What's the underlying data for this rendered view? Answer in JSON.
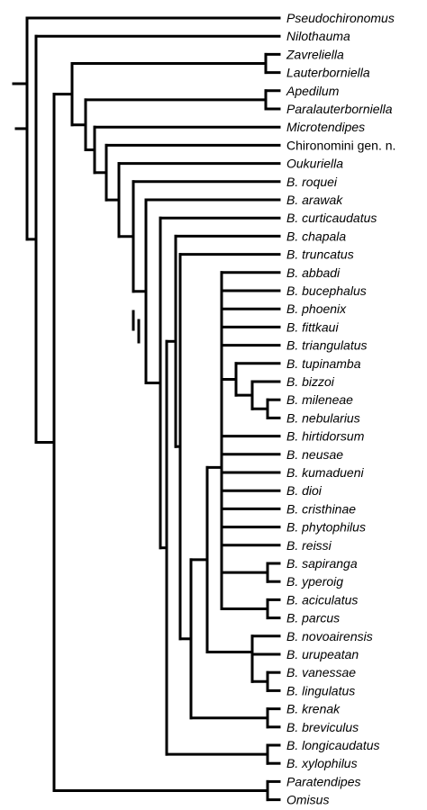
{
  "taxa": [
    {
      "label": "Pseudochironomus",
      "italic": true
    },
    {
      "label": "Nilothauma",
      "italic": true
    },
    {
      "label": "Zavreliella",
      "italic": true
    },
    {
      "label": "Lauterborniella",
      "italic": true
    },
    {
      "label": "Apedilum",
      "italic": true
    },
    {
      "label": "Paralauterborniella",
      "italic": true
    },
    {
      "label": "Microtendipes",
      "italic": true
    },
    {
      "label": "Chironomini gen. n.",
      "italic": false
    },
    {
      "label": "Oukuriella",
      "italic": true
    },
    {
      "label": "B. roquei",
      "italic": true
    },
    {
      "label": "B. arawak",
      "italic": true
    },
    {
      "label": "B. curticaudatus",
      "italic": true
    },
    {
      "label": "B. chapala",
      "italic": true
    },
    {
      "label": "B. truncatus",
      "italic": true
    },
    {
      "label": "B. abbadi",
      "italic": true
    },
    {
      "label": "B. bucephalus",
      "italic": true
    },
    {
      "label": "B. phoenix",
      "italic": true
    },
    {
      "label": "B. fittkaui",
      "italic": true
    },
    {
      "label": "B. triangulatus",
      "italic": true
    },
    {
      "label": "B. tupinamba",
      "italic": true
    },
    {
      "label": "B. bizzoi",
      "italic": true
    },
    {
      "label": "B. mileneae",
      "italic": true
    },
    {
      "label": "B. nebularius",
      "italic": true
    },
    {
      "label": "B. hirtidorsum",
      "italic": true
    },
    {
      "label": "B. neusae",
      "italic": true
    },
    {
      "label": "B. kumadueni",
      "italic": true
    },
    {
      "label": "B. dioi",
      "italic": true
    },
    {
      "label": "B. cristhinae",
      "italic": true
    },
    {
      "label": "B. phytophilus",
      "italic": true
    },
    {
      "label": "B. reissi",
      "italic": true
    },
    {
      "label": "B. sapiranga",
      "italic": true
    },
    {
      "label": "B. yperoig",
      "italic": true
    },
    {
      "label": "B. aciculatus",
      "italic": true
    },
    {
      "label": "B. parcus",
      "italic": true
    },
    {
      "label": "B. novoairensis",
      "italic": true
    },
    {
      "label": "B. urupeatan",
      "italic": true
    },
    {
      "label": "B. vanessae",
      "italic": true
    },
    {
      "label": "B. lingulatus",
      "italic": true
    },
    {
      "label": "B. krenak",
      "italic": true
    },
    {
      "label": "B. breviculus",
      "italic": true
    },
    {
      "label": "B. longicaudatus",
      "italic": true
    },
    {
      "label": "B. xylophilus",
      "italic": true
    },
    {
      "label": "Paratendipes",
      "italic": true
    },
    {
      "label": "Omisus",
      "italic": true
    }
  ]
}
